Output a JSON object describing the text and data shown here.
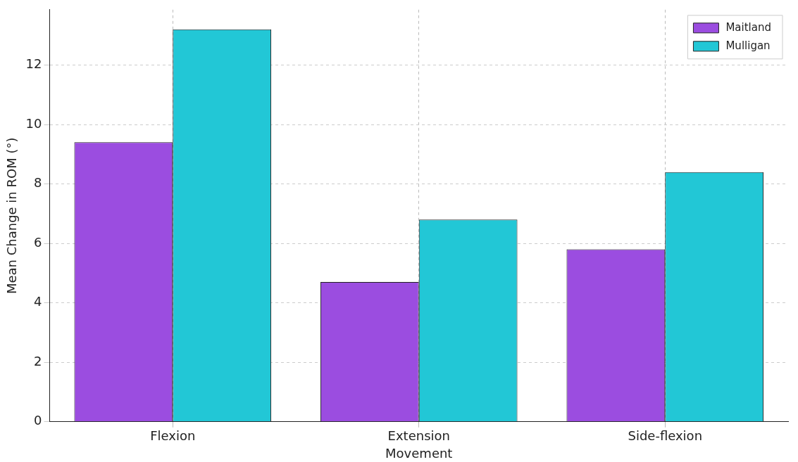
{
  "chart_data": {
    "type": "bar",
    "xlabel": "Movement",
    "ylabel": "Mean Change in ROM (°)",
    "categories": [
      "Flexion",
      "Extension",
      "Side-flexion"
    ],
    "series": [
      {
        "name": "Maitland",
        "color": "#9b4de0",
        "values": [
          9.4,
          4.7,
          5.8
        ]
      },
      {
        "name": "Mulligan",
        "color": "#22c7d6",
        "values": [
          13.2,
          6.8,
          8.4
        ]
      }
    ],
    "ylim": [
      0,
      13.86
    ],
    "yticks": [
      0,
      2,
      4,
      6,
      8,
      10,
      12
    ],
    "grid": true,
    "legend": "top right"
  }
}
